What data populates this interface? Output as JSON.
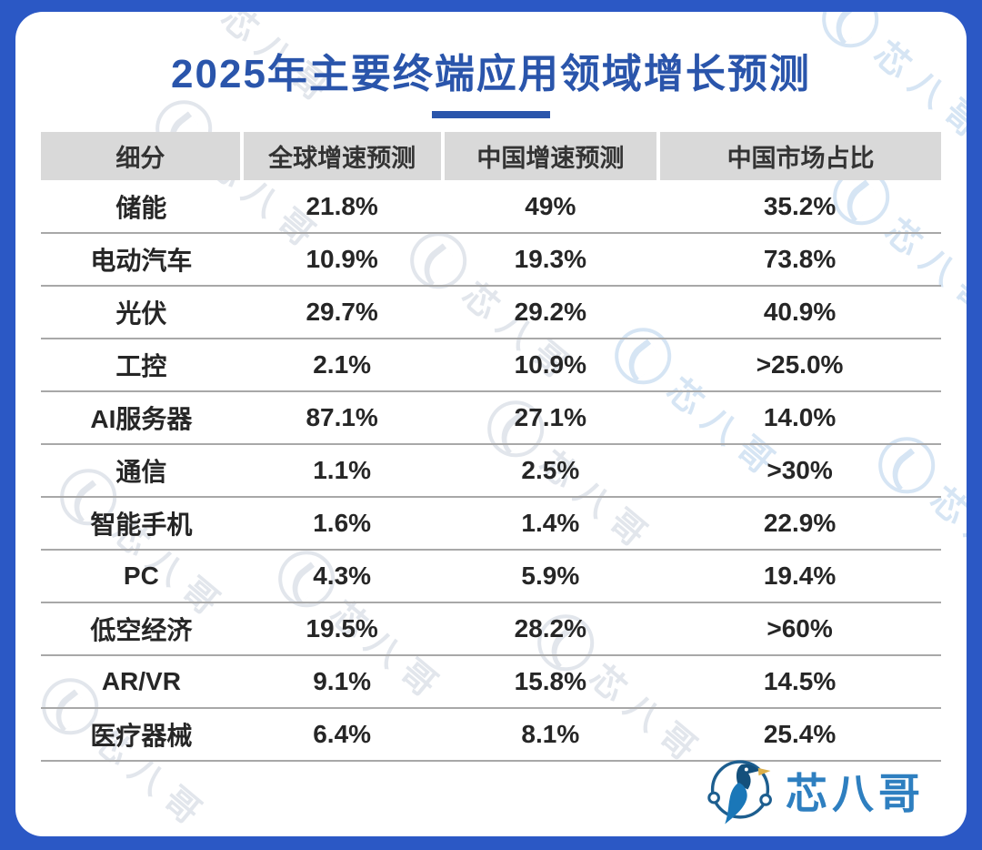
{
  "title": "2025年主要终端应用领域增长预测",
  "accent_color": "#2a55ab",
  "frame_color": "#2b58c5",
  "header_bg_color": "#d9d9d9",
  "table": {
    "columns": [
      "细分",
      "全球增速预测",
      "中国增速预测",
      "中国市场占比"
    ],
    "rows": [
      [
        "储能",
        "21.8%",
        "49%",
        "35.2%"
      ],
      [
        "电动汽车",
        "10.9%",
        "19.3%",
        "73.8%"
      ],
      [
        "光伏",
        "29.7%",
        "29.2%",
        "40.9%"
      ],
      [
        "工控",
        "2.1%",
        "10.9%",
        ">25.0%"
      ],
      [
        "AI服务器",
        "87.1%",
        "27.1%",
        "14.0%"
      ],
      [
        "通信",
        "1.1%",
        "2.5%",
        ">30%"
      ],
      [
        "智能手机",
        "1.6%",
        "1.4%",
        "22.9%"
      ],
      [
        "PC",
        "4.3%",
        "5.9%",
        "19.4%"
      ],
      [
        "低空经济",
        "19.5%",
        "28.2%",
        ">60%"
      ],
      [
        "AR/VR",
        "9.1%",
        "15.8%",
        "14.5%"
      ],
      [
        "医疗器械",
        "6.4%",
        "8.1%",
        "25.4%"
      ]
    ]
  },
  "brand": {
    "name": "芯八哥",
    "text_color": "#2e7fc0"
  },
  "watermark": {
    "text": "芯八哥"
  },
  "chart_data": {
    "type": "table",
    "title": "2025年主要终端应用领域增长预测",
    "columns": [
      "细分",
      "全球增速预测",
      "中国增速预测",
      "中国市场占比"
    ],
    "categories": [
      "储能",
      "电动汽车",
      "光伏",
      "工控",
      "AI服务器",
      "通信",
      "智能手机",
      "PC",
      "低空经济",
      "AR/VR",
      "医疗器械"
    ],
    "series": [
      {
        "name": "全球增速预测",
        "values": [
          "21.8%",
          "10.9%",
          "29.7%",
          "2.1%",
          "87.1%",
          "1.1%",
          "1.6%",
          "4.3%",
          "19.5%",
          "9.1%",
          "6.4%"
        ]
      },
      {
        "name": "中国增速预测",
        "values": [
          "49%",
          "19.3%",
          "29.2%",
          "10.9%",
          "27.1%",
          "2.5%",
          "1.4%",
          "5.9%",
          "28.2%",
          "15.8%",
          "8.1%"
        ]
      },
      {
        "name": "中国市场占比",
        "values": [
          "35.2%",
          "73.8%",
          "40.9%",
          ">25.0%",
          "14.0%",
          ">30%",
          "22.9%",
          "19.4%",
          ">60%",
          "14.5%",
          "25.4%"
        ]
      }
    ],
    "legend_position": "none",
    "grid": "horizontal-row-dividers"
  }
}
